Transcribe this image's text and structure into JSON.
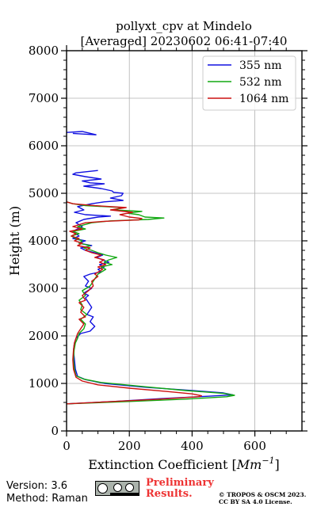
{
  "chart_data": {
    "type": "line",
    "title_line1": "pollyxt_cpv at Mindelo",
    "title_line2": "[Averaged] 20230602 06:41-07:40",
    "xlabel": "Extinction Coefficient [",
    "xlabel_unit": "Mm",
    "xlabel_exp": "−1",
    "xlabel_end": "]",
    "ylabel": "Height (m)",
    "xlim": [
      0,
      750
    ],
    "ylim": [
      0,
      8000
    ],
    "x_ticks": [
      0,
      200,
      400,
      600
    ],
    "x_tick_labels": [
      "0",
      "200",
      "400",
      "600"
    ],
    "y_ticks": [
      0,
      1000,
      2000,
      3000,
      4000,
      5000,
      6000,
      7000,
      8000
    ],
    "y_tick_labels": [
      "0",
      "1000",
      "2000",
      "3000",
      "4000",
      "5000",
      "6000",
      "7000",
      "8000"
    ],
    "grid": true,
    "legend_position": "top-right",
    "series": [
      {
        "name": "355 nm",
        "color": "#1010e0",
        "points": [
          [
            0,
            570
          ],
          [
            150,
            620
          ],
          [
            300,
            680
          ],
          [
            450,
            730
          ],
          [
            530,
            760
          ],
          [
            500,
            800
          ],
          [
            400,
            850
          ],
          [
            250,
            920
          ],
          [
            120,
            1000
          ],
          [
            60,
            1080
          ],
          [
            35,
            1150
          ],
          [
            28,
            1300
          ],
          [
            25,
            1500
          ],
          [
            22,
            1700
          ],
          [
            25,
            1850
          ],
          [
            30,
            1950
          ],
          [
            45,
            2050
          ],
          [
            75,
            2100
          ],
          [
            90,
            2200
          ],
          [
            75,
            2300
          ],
          [
            85,
            2400
          ],
          [
            65,
            2450
          ],
          [
            75,
            2550
          ],
          [
            80,
            2600
          ],
          [
            70,
            2700
          ],
          [
            60,
            2800
          ],
          [
            70,
            2850
          ],
          [
            55,
            2900
          ],
          [
            80,
            3000
          ],
          [
            60,
            3050
          ],
          [
            70,
            3150
          ],
          [
            55,
            3250
          ],
          [
            75,
            3300
          ],
          [
            110,
            3350
          ],
          [
            100,
            3400
          ],
          [
            120,
            3450
          ],
          [
            105,
            3500
          ],
          [
            135,
            3550
          ],
          [
            115,
            3600
          ],
          [
            95,
            3650
          ],
          [
            115,
            3700
          ],
          [
            90,
            3750
          ],
          [
            60,
            3800
          ],
          [
            45,
            3850
          ],
          [
            80,
            3900
          ],
          [
            40,
            3950
          ],
          [
            60,
            4000
          ],
          [
            20,
            4050
          ],
          [
            40,
            4100
          ],
          [
            20,
            4200
          ],
          [
            50,
            4300
          ],
          [
            30,
            4380
          ],
          [
            55,
            4450
          ],
          [
            100,
            4500
          ],
          [
            140,
            4520
          ],
          [
            60,
            4550
          ],
          [
            25,
            4600
          ],
          [
            55,
            4650
          ],
          [
            35,
            4720
          ],
          [
            80,
            4780
          ],
          [
            120,
            4820
          ],
          [
            180,
            4850
          ],
          [
            140,
            4900
          ],
          [
            175,
            4950
          ],
          [
            180,
            5000
          ],
          [
            150,
            5020
          ],
          [
            145,
            5050
          ],
          [
            110,
            5100
          ],
          [
            55,
            5150
          ],
          [
            120,
            5200
          ],
          [
            75,
            5220
          ],
          [
            50,
            5260
          ],
          [
            110,
            5300
          ],
          [
            60,
            5350
          ],
          [
            20,
            5400
          ],
          [
            30,
            5430
          ],
          [
            100,
            5480
          ]
        ],
        "points_upper": [
          [
            0,
            6280
          ],
          [
            50,
            6300
          ],
          [
            95,
            6230
          ],
          [
            20,
            6260
          ]
        ]
      },
      {
        "name": "532 nm",
        "color": "#10a810",
        "points": [
          [
            0,
            570
          ],
          [
            200,
            620
          ],
          [
            380,
            670
          ],
          [
            510,
            720
          ],
          [
            535,
            750
          ],
          [
            500,
            790
          ],
          [
            380,
            850
          ],
          [
            250,
            930
          ],
          [
            110,
            1020
          ],
          [
            55,
            1090
          ],
          [
            30,
            1160
          ],
          [
            25,
            1300
          ],
          [
            22,
            1500
          ],
          [
            24,
            1700
          ],
          [
            28,
            1850
          ],
          [
            35,
            1950
          ],
          [
            40,
            2050
          ],
          [
            55,
            2150
          ],
          [
            60,
            2250
          ],
          [
            45,
            2350
          ],
          [
            65,
            2450
          ],
          [
            45,
            2550
          ],
          [
            50,
            2650
          ],
          [
            40,
            2750
          ],
          [
            60,
            2850
          ],
          [
            50,
            2950
          ],
          [
            75,
            3050
          ],
          [
            85,
            3150
          ],
          [
            95,
            3250
          ],
          [
            100,
            3300
          ],
          [
            125,
            3400
          ],
          [
            110,
            3450
          ],
          [
            145,
            3500
          ],
          [
            120,
            3550
          ],
          [
            135,
            3600
          ],
          [
            160,
            3650
          ],
          [
            125,
            3700
          ],
          [
            100,
            3750
          ],
          [
            80,
            3800
          ],
          [
            55,
            3850
          ],
          [
            75,
            3900
          ],
          [
            40,
            3950
          ],
          [
            50,
            4000
          ],
          [
            30,
            4050
          ],
          [
            15,
            4100
          ],
          [
            40,
            4150
          ],
          [
            20,
            4200
          ],
          [
            60,
            4250
          ],
          [
            35,
            4300
          ],
          [
            80,
            4380
          ],
          [
            140,
            4420
          ],
          [
            260,
            4450
          ],
          [
            310,
            4480
          ],
          [
            250,
            4500
          ],
          [
            230,
            4550
          ],
          [
            195,
            4580
          ],
          [
            240,
            4620
          ],
          [
            150,
            4650
          ],
          [
            180,
            4700
          ],
          [
            60,
            4740
          ],
          [
            20,
            4780
          ],
          [
            0,
            4820
          ]
        ]
      },
      {
        "name": "1064 nm",
        "color": "#cc1111",
        "points": [
          [
            0,
            570
          ],
          [
            150,
            620
          ],
          [
            300,
            670
          ],
          [
            420,
            720
          ],
          [
            430,
            740
          ],
          [
            400,
            780
          ],
          [
            320,
            830
          ],
          [
            200,
            900
          ],
          [
            100,
            970
          ],
          [
            50,
            1050
          ],
          [
            30,
            1130
          ],
          [
            22,
            1300
          ],
          [
            20,
            1500
          ],
          [
            22,
            1700
          ],
          [
            25,
            1850
          ],
          [
            30,
            1950
          ],
          [
            35,
            2050
          ],
          [
            45,
            2150
          ],
          [
            55,
            2250
          ],
          [
            40,
            2350
          ],
          [
            60,
            2400
          ],
          [
            45,
            2500
          ],
          [
            55,
            2600
          ],
          [
            40,
            2700
          ],
          [
            60,
            2750
          ],
          [
            50,
            2850
          ],
          [
            70,
            2950
          ],
          [
            85,
            3050
          ],
          [
            80,
            3150
          ],
          [
            100,
            3250
          ],
          [
            90,
            3300
          ],
          [
            115,
            3400
          ],
          [
            100,
            3450
          ],
          [
            125,
            3500
          ],
          [
            105,
            3550
          ],
          [
            120,
            3600
          ],
          [
            90,
            3650
          ],
          [
            110,
            3700
          ],
          [
            80,
            3750
          ],
          [
            60,
            3800
          ],
          [
            75,
            3850
          ],
          [
            35,
            3900
          ],
          [
            50,
            3950
          ],
          [
            25,
            4000
          ],
          [
            40,
            4050
          ],
          [
            15,
            4100
          ],
          [
            30,
            4150
          ],
          [
            10,
            4200
          ],
          [
            50,
            4250
          ],
          [
            20,
            4300
          ],
          [
            60,
            4380
          ],
          [
            120,
            4410
          ],
          [
            230,
            4440
          ],
          [
            240,
            4470
          ],
          [
            200,
            4500
          ],
          [
            170,
            4550
          ],
          [
            210,
            4600
          ],
          [
            140,
            4650
          ],
          [
            190,
            4700
          ],
          [
            90,
            4740
          ],
          [
            20,
            4780
          ],
          [
            0,
            4820
          ]
        ]
      }
    ]
  },
  "footer": {
    "version": "Version: 3.6",
    "method": "Method: Raman",
    "preliminary_line1": "Preliminary",
    "preliminary_line2": "Results.",
    "copyright_line1": "© TROPOS & OSCM 2023.",
    "copyright_line2": "CC BY SA 4.0 License."
  }
}
